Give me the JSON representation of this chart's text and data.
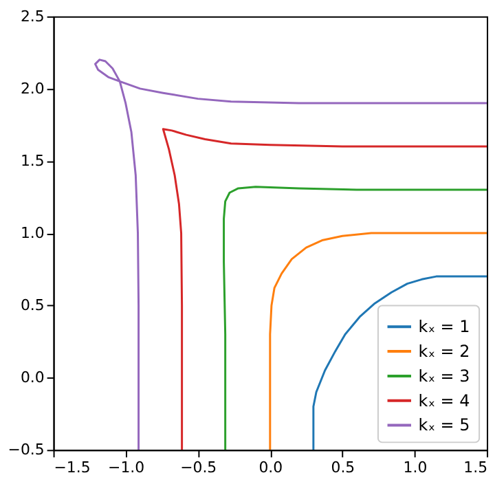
{
  "chart_data": {
    "type": "line",
    "xlim": [
      -1.5,
      1.5
    ],
    "ylim": [
      -0.5,
      2.5
    ],
    "xticks": [
      -1.5,
      {
        "value": -1,
        "label": "−1.0"
      },
      -0.5,
      {
        "value": 0,
        "label": "0.0"
      },
      0.5,
      {
        "value": 1,
        "label": "1.0"
      },
      1.5
    ],
    "yticks": [
      -0.5,
      {
        "value": 0,
        "label": "0.0"
      },
      0.5,
      {
        "value": 1,
        "label": "1.0"
      },
      1.5,
      {
        "value": 2,
        "label": "2.0"
      },
      2.5
    ],
    "grid": false,
    "legend": "bottom right",
    "line_style": "solid",
    "series": [
      {
        "name": "kₓ = 1",
        "color": "#1f77b4",
        "x": [
          0.3,
          0.3,
          0.32,
          0.38,
          0.45,
          0.52,
          0.62,
          0.72,
          0.84,
          0.95,
          1.05,
          1.15,
          1.25,
          1.5
        ],
        "values": [
          -0.5,
          -0.2,
          -0.1,
          0.05,
          0.18,
          0.3,
          0.42,
          0.51,
          0.59,
          0.65,
          0.68,
          0.7,
          0.7,
          0.7
        ]
      },
      {
        "name": "kₓ = 2",
        "color": "#ff7f0e",
        "x": [
          0.0,
          0.0,
          0.01,
          0.03,
          0.08,
          0.15,
          0.25,
          0.36,
          0.5,
          0.7,
          1.5
        ],
        "values": [
          -0.5,
          0.3,
          0.5,
          0.62,
          0.72,
          0.82,
          0.9,
          0.95,
          0.98,
          1.0,
          1.0
        ]
      },
      {
        "name": "kₓ = 3",
        "color": "#2ca02c",
        "x": [
          -0.31,
          -0.31,
          -0.32,
          -0.32,
          -0.31,
          -0.28,
          -0.22,
          -0.1,
          0.2,
          0.6,
          1.5
        ],
        "values": [
          -0.5,
          0.3,
          0.8,
          1.1,
          1.22,
          1.28,
          1.31,
          1.32,
          1.31,
          1.3,
          1.3
        ]
      },
      {
        "name": "kₓ = 4",
        "color": "#d62728",
        "x": [
          -0.61,
          -0.61,
          -0.615,
          -0.63,
          -0.66,
          -0.7,
          -0.74,
          -0.68,
          -0.58,
          -0.45,
          -0.27,
          0.0,
          0.5,
          1.5
        ],
        "values": [
          -0.5,
          0.5,
          1.0,
          1.2,
          1.4,
          1.58,
          1.72,
          1.71,
          1.68,
          1.65,
          1.62,
          1.61,
          1.6,
          1.6
        ]
      },
      {
        "name": "kₓ = 5",
        "color": "#9467bd",
        "x": [
          -0.91,
          -0.91,
          -0.915,
          -0.93,
          -0.96,
          -1.0,
          -1.04,
          -1.09,
          -1.14,
          -1.18,
          -1.21,
          -1.19,
          -1.12,
          -1.04,
          -0.9,
          -0.74,
          -0.5,
          -0.27,
          0.2,
          1.5
        ],
        "values": [
          -0.5,
          0.5,
          1.0,
          1.4,
          1.7,
          1.9,
          2.05,
          2.14,
          2.19,
          2.2,
          2.17,
          2.13,
          2.08,
          2.05,
          2.0,
          1.97,
          1.93,
          1.91,
          1.9,
          1.9
        ]
      }
    ]
  }
}
